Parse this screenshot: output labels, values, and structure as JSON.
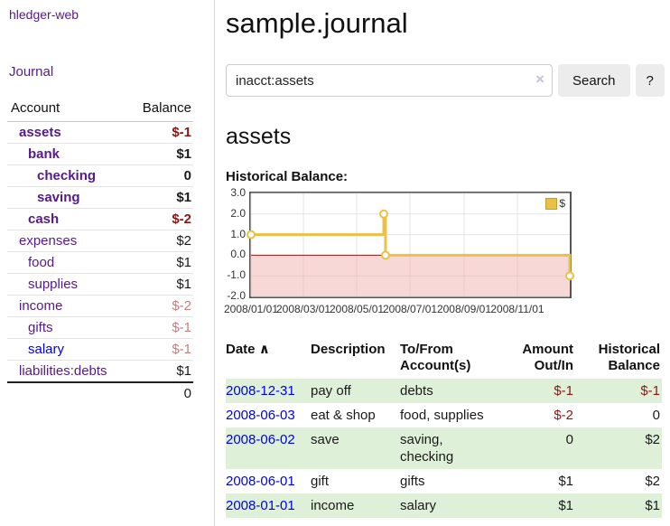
{
  "app": {
    "brand": "hledger-web"
  },
  "colors": {
    "link_purple": "#551a8b",
    "link_blue": "#0000e8",
    "negative_strong": "#8e1515",
    "negative_soft": "#bd8181",
    "row_highlight": "#def0d8",
    "chart_line": "#e9c144",
    "chart_negative_fill": "#f2afaf",
    "chart_zero_line": "#8b1a1a"
  },
  "sidebar": {
    "journal_link": "Journal",
    "accounts_table": {
      "headers": {
        "account": "Account",
        "balance": "Balance"
      },
      "rows": [
        {
          "name": "assets",
          "depth": 1,
          "bold": true,
          "balance": "$-1",
          "balance_tone": "neg-strong",
          "link_tone": "tone-purple"
        },
        {
          "name": "bank",
          "depth": 2,
          "bold": true,
          "balance": "$1",
          "balance_tone": "normal",
          "link_tone": "tone-purple"
        },
        {
          "name": "checking",
          "depth": 3,
          "bold": true,
          "balance": "0",
          "balance_tone": "normal",
          "link_tone": "tone-purple"
        },
        {
          "name": "saving",
          "depth": 3,
          "bold": true,
          "balance": "$1",
          "balance_tone": "normal",
          "link_tone": "tone-purple"
        },
        {
          "name": "cash",
          "depth": 2,
          "bold": true,
          "balance": "$-2",
          "balance_tone": "neg-strong",
          "link_tone": "tone-purple"
        },
        {
          "name": "expenses",
          "depth": 1,
          "bold": false,
          "balance": "$2",
          "balance_tone": "normal",
          "link_tone": "tone-purple"
        },
        {
          "name": "food",
          "depth": 2,
          "bold": false,
          "balance": "$1",
          "balance_tone": "normal",
          "link_tone": "tone-purple"
        },
        {
          "name": "supplies",
          "depth": 2,
          "bold": false,
          "balance": "$1",
          "balance_tone": "normal",
          "link_tone": "tone-purple"
        },
        {
          "name": "income",
          "depth": 1,
          "bold": false,
          "balance": "$-2",
          "balance_tone": "neg-soft",
          "link_tone": "tone-purple"
        },
        {
          "name": "gifts",
          "depth": 2,
          "bold": false,
          "balance": "$-1",
          "balance_tone": "neg-soft",
          "link_tone": "tone-purple"
        },
        {
          "name": "salary",
          "depth": 2,
          "bold": false,
          "balance": "$-1",
          "balance_tone": "neg-soft",
          "link_tone": "tone-blue"
        },
        {
          "name": "liabilities:debts",
          "depth": 1,
          "bold": false,
          "balance": "$1",
          "balance_tone": "normal",
          "link_tone": "tone-purple"
        }
      ],
      "total": "0"
    }
  },
  "header": {
    "title": "sample.journal"
  },
  "search": {
    "query": "inacct:assets",
    "clear_label": "×",
    "search_button": "Search",
    "help_button": "?"
  },
  "account_page": {
    "heading": "assets",
    "chart_title": "Historical Balance:"
  },
  "chart_data": {
    "type": "line",
    "title": "Historical Balance:",
    "step": "after",
    "legend": [
      {
        "label": "$",
        "color": "#e9c144"
      }
    ],
    "legend_position": "top-right",
    "grid": true,
    "x_domain": [
      "2008-01-01",
      "2008-12-31"
    ],
    "x_ticks": [
      "2008/01/01",
      "2008/03/01",
      "2008/05/01",
      "2008/07/01",
      "2008/09/01",
      "2008/11/01"
    ],
    "y_ticks": [
      "3.0",
      "2.0",
      "1.0",
      "0.0",
      "-1.0",
      "-2.0"
    ],
    "ylim": [
      -2.0,
      3.0
    ],
    "series": [
      {
        "name": "$",
        "color": "#e9c144",
        "points": [
          [
            "2008-01-01",
            1
          ],
          [
            "2008-06-01",
            2
          ],
          [
            "2008-06-03",
            0
          ],
          [
            "2008-12-31",
            -1
          ]
        ]
      }
    ],
    "negative_region_color": "#f2afaf",
    "zero_line_color": "#8b1a1a"
  },
  "register": {
    "headers": {
      "date": "Date",
      "sort_indicator": "∧",
      "description": "Description",
      "accounts": "To/From Account(s)",
      "amount": "Amount Out/In",
      "balance": "Historical Balance"
    },
    "rows": [
      {
        "date": "2008-12-31",
        "description": "pay off",
        "accounts": "debts",
        "amount": "$-1",
        "amount_negative": true,
        "balance": "$-1",
        "balance_negative": true,
        "highlight": true
      },
      {
        "date": "2008-06-03",
        "description": "eat & shop",
        "accounts": "food, supplies",
        "amount": "$-2",
        "amount_negative": true,
        "balance": "0",
        "balance_negative": false,
        "highlight": false
      },
      {
        "date": "2008-06-02",
        "description": "save",
        "accounts": "saving, checking",
        "amount": "0",
        "amount_negative": false,
        "balance": "$2",
        "balance_negative": false,
        "highlight": true
      },
      {
        "date": "2008-06-01",
        "description": "gift",
        "accounts": "gifts",
        "amount": "$1",
        "amount_negative": false,
        "balance": "$2",
        "balance_negative": false,
        "highlight": false
      },
      {
        "date": "2008-01-01",
        "description": "income",
        "accounts": "salary",
        "amount": "$1",
        "amount_negative": false,
        "balance": "$1",
        "balance_negative": false,
        "highlight": true
      }
    ]
  }
}
